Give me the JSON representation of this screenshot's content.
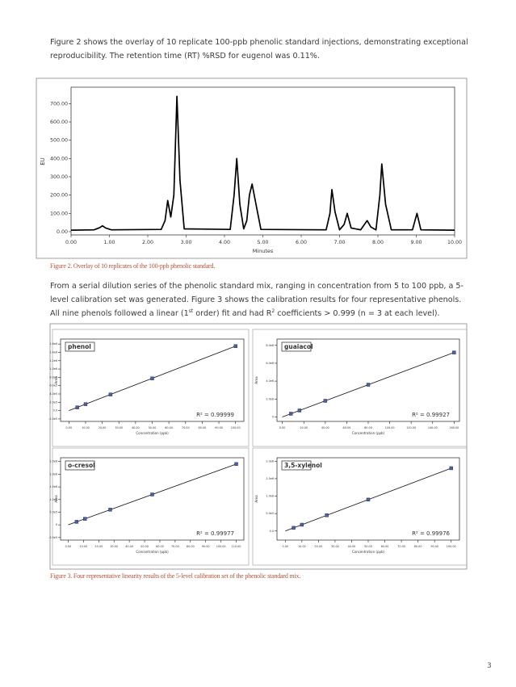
{
  "text": {
    "intro": "Figure 2 shows the overlay of 10 replicate 100-ppb phenolic standard injections, demonstrating exceptional reproducibility. The retention time (RT) %RSD for eugenol was 0.11%.",
    "caption_fig2": "Figure 2. Overlay of 10 replicates of the 100-ppb phenolic standard.",
    "calibration_paragraph": [
      "From a serial dilution series of the phenolic standard mix, ranging in concentration from 5 to 100 ppb, a 5-level calibration set was generated. Figure 3 shows the calibration results for four representative phenols. All nine phenols followed a linear (1",
      "st",
      " order) fit and had R",
      "2",
      " coefficients > 0.999 (n = 3 at each level)."
    ],
    "caption_fig3": "Figure 3. Four representative linearity results of the 5-level calibration set of the phenolic standard mix.",
    "page_number": 3
  },
  "chart_data": [
    {
      "type": "line",
      "xlabel": "Minutes",
      "ylabel": "EU",
      "x": [
        0,
        0.6,
        0.75,
        0.82,
        0.9,
        1.05,
        2.35,
        2.45,
        2.52,
        2.6,
        2.68,
        2.76,
        2.84,
        2.95,
        4.15,
        4.25,
        4.32,
        4.4,
        4.5,
        4.58,
        4.65,
        4.72,
        4.82,
        4.95,
        6.65,
        6.75,
        6.8,
        6.88,
        7.0,
        7.12,
        7.2,
        7.3,
        7.55,
        7.65,
        7.72,
        7.82,
        7.95,
        8.05,
        8.1,
        8.2,
        8.35,
        8.9,
        8.98,
        9.02,
        9.12,
        10
      ],
      "series": [
        {
          "color": "#000000",
          "values": [
            8,
            10,
            22,
            32,
            20,
            10,
            12,
            60,
            170,
            80,
            200,
            740,
            280,
            15,
            12,
            200,
            400,
            150,
            15,
            60,
            200,
            260,
            150,
            12,
            10,
            100,
            230,
            110,
            10,
            40,
            100,
            20,
            10,
            40,
            60,
            25,
            10,
            200,
            370,
            150,
            10,
            10,
            70,
            100,
            10,
            8
          ]
        }
      ],
      "xlim": [
        0,
        10
      ],
      "xticks": [
        {
          "value": 0,
          "label": "0.00"
        },
        {
          "value": 1,
          "label": "1.00"
        },
        {
          "value": 2,
          "label": "2.00"
        },
        {
          "value": 3,
          "label": "3.00"
        },
        {
          "value": 4,
          "label": "4.00"
        },
        {
          "value": 5,
          "label": "5.00"
        },
        {
          "value": 6,
          "label": "6.00"
        },
        {
          "value": 7,
          "label": "7.00"
        },
        {
          "value": 8,
          "label": "8.00"
        },
        {
          "value": 9,
          "label": "9.00"
        },
        {
          "value": 10,
          "label": "10.00"
        }
      ],
      "ylim": [
        -18,
        790
      ],
      "yticks": [
        {
          "value": 0,
          "label": "0.00"
        },
        {
          "value": 100,
          "label": "100.00"
        },
        {
          "value": 200,
          "label": "200.00"
        },
        {
          "value": 300,
          "label": "300.00"
        },
        {
          "value": 400,
          "label": "400.00"
        },
        {
          "value": 500,
          "label": "500.00"
        },
        {
          "value": 600,
          "label": "600.00"
        },
        {
          "value": 700,
          "label": "700.00"
        }
      ]
    },
    {
      "type": "scatter",
      "title": "phenol",
      "annotation": "R² = 0.99999",
      "xlabel": "Concentration (ppb)",
      "ylabel": "Area",
      "x": [
        5,
        10,
        25,
        50,
        100
      ],
      "values": [
        77500,
        155000,
        387500,
        775000,
        1550000
      ],
      "color": "#4a5fae",
      "trendline": true,
      "xlim": [
        -5,
        105
      ],
      "xticks": [
        {
          "value": 0,
          "label": "0.00"
        },
        {
          "value": 10,
          "label": "10.00"
        },
        {
          "value": 20,
          "label": "20.00"
        },
        {
          "value": 30,
          "label": "30.00"
        },
        {
          "value": 40,
          "label": "40.00"
        },
        {
          "value": 50,
          "label": "50.00"
        },
        {
          "value": 60,
          "label": "60.00"
        },
        {
          "value": 70,
          "label": "70.00"
        },
        {
          "value": 80,
          "label": "80.00"
        },
        {
          "value": 90,
          "label": "90.00"
        },
        {
          "value": 100,
          "label": "100.00"
        }
      ],
      "ylim": [
        -260000,
        1720000
      ],
      "yticks": [
        {
          "value": -200000,
          "label": "-2.0e5"
        },
        {
          "value": 0,
          "label": "0.0"
        },
        {
          "value": 200000,
          "label": "2.0e5"
        },
        {
          "value": 400000,
          "label": "4.0e5"
        },
        {
          "value": 600000,
          "label": "6.0e5"
        },
        {
          "value": 800000,
          "label": "8.0e5"
        },
        {
          "value": 1000000,
          "label": "1.0e6"
        },
        {
          "value": 1200000,
          "label": "1.2e6"
        },
        {
          "value": 1400000,
          "label": "1.4e6"
        },
        {
          "value": 1600000,
          "label": "1.6e6"
        }
      ]
    },
    {
      "type": "scatter",
      "title": "guaiacol",
      "annotation": "R² = 0.99927",
      "xlabel": "Concentration (ppb)",
      "ylabel": "Area",
      "x": [
        8,
        16,
        40,
        80,
        160
      ],
      "values": [
        360000,
        720000,
        1800000,
        3600000,
        7200000
      ],
      "color": "#4a5fae",
      "trendline": true,
      "xlim": [
        -5,
        165
      ],
      "xticks": [
        {
          "value": 0,
          "label": "0.00"
        },
        {
          "value": 20,
          "label": "20.00"
        },
        {
          "value": 40,
          "label": "40.00"
        },
        {
          "value": 60,
          "label": "60.00"
        },
        {
          "value": 80,
          "label": "80.00"
        },
        {
          "value": 100,
          "label": "100.00"
        },
        {
          "value": 120,
          "label": "120.00"
        },
        {
          "value": 140,
          "label": "140.00"
        },
        {
          "value": 160,
          "label": "160.00"
        }
      ],
      "ylim": [
        -500000,
        8700000
      ],
      "yticks": [
        0,
        {
          "value": 2000000,
          "label": "2.0e6"
        },
        {
          "value": 4000000,
          "label": "4.0e6"
        },
        {
          "value": 6000000,
          "label": "6.0e6"
        },
        {
          "value": 8000000,
          "label": "8.0e6"
        }
      ]
    },
    {
      "type": "scatter",
      "title": "o-cresol",
      "annotation": "R² = 0.99977",
      "xlabel": "Concentration (ppb)",
      "ylabel": "Area",
      "x": [
        5.5,
        11,
        27.5,
        55,
        110
      ],
      "values": [
        120000,
        240000,
        600000,
        1200000,
        2400000
      ],
      "color": "#4a5fae",
      "trendline": true,
      "xlim": [
        -5,
        115
      ],
      "xticks": [
        {
          "value": 0,
          "label": "0.00"
        },
        {
          "value": 10,
          "label": "10.00"
        },
        {
          "value": 20,
          "label": "20.00"
        },
        {
          "value": 30,
          "label": "30.00"
        },
        {
          "value": 40,
          "label": "40.00"
        },
        {
          "value": 50,
          "label": "50.00"
        },
        {
          "value": 60,
          "label": "60.00"
        },
        {
          "value": 70,
          "label": "70.00"
        },
        {
          "value": 80,
          "label": "80.00"
        },
        {
          "value": 90,
          "label": "90.00"
        },
        {
          "value": 100,
          "label": "100.00"
        },
        {
          "value": 110,
          "label": "110.00"
        }
      ],
      "ylim": [
        -600000,
        2650000
      ],
      "yticks": [
        {
          "value": -500000,
          "label": "-5.0e5"
        },
        0,
        {
          "value": 500000,
          "label": "5.0e5"
        },
        {
          "value": 1000000,
          "label": "1.0e6"
        },
        {
          "value": 1500000,
          "label": "1.5e6"
        },
        {
          "value": 2000000,
          "label": "2.0e6"
        },
        {
          "value": 2500000,
          "label": "2.5e6"
        }
      ]
    },
    {
      "type": "scatter",
      "title": "3,5-xylenol",
      "annotation": "R² = 0.99976",
      "xlabel": "Concentration (ppb)",
      "ylabel": "Area",
      "x": [
        5,
        10,
        25,
        50,
        100
      ],
      "values": [
        90000,
        180000,
        450000,
        900000,
        1800000
      ],
      "color": "#4a5fae",
      "trendline": true,
      "xlim": [
        -5,
        105
      ],
      "xticks": [
        {
          "value": 0,
          "label": "0.00"
        },
        {
          "value": 10,
          "label": "10.00"
        },
        {
          "value": 20,
          "label": "20.00"
        },
        {
          "value": 30,
          "label": "30.00"
        },
        {
          "value": 40,
          "label": "40.00"
        },
        {
          "value": 50,
          "label": "50.00"
        },
        {
          "value": 60,
          "label": "60.00"
        },
        {
          "value": 70,
          "label": "70.00"
        },
        {
          "value": 80,
          "label": "80.00"
        },
        {
          "value": 90,
          "label": "90.00"
        },
        {
          "value": 100,
          "label": "100.00"
        }
      ],
      "ylim": [
        -260000,
        2100000
      ],
      "yticks": [
        {
          "value": 0,
          "label": "0.0"
        },
        {
          "value": 500000,
          "label": "5.0e5"
        },
        {
          "value": 1000000,
          "label": "1.0e6"
        },
        {
          "value": 1500000,
          "label": "1.5e6"
        },
        {
          "value": 2000000,
          "label": "2.0e6"
        }
      ]
    }
  ]
}
